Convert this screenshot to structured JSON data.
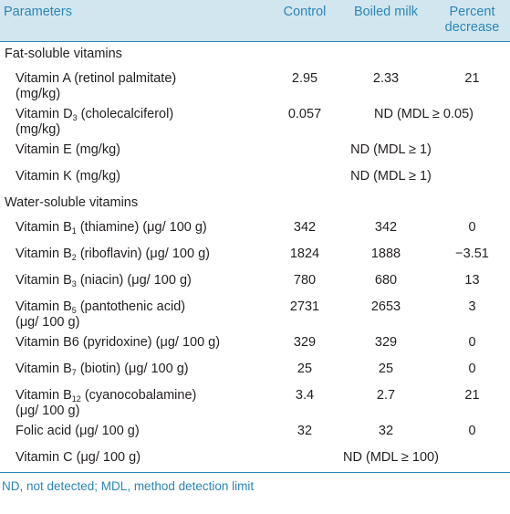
{
  "header": {
    "parameters": "Parameters",
    "control": "Control",
    "boiled_milk": "Boiled milk",
    "percent_decrease_1": "Percent",
    "percent_decrease_2": "decrease"
  },
  "sections": {
    "fat_title": "Fat-soluble vitamins",
    "water_title": "Water-soluble vitamins"
  },
  "rows": {
    "vitA": {
      "l1": "Vitamin A (retinol palmitate)",
      "l2": "(mg/kg)",
      "control": "2.95",
      "boiled": "2.33",
      "pct": "21"
    },
    "vitD": {
      "pre": "Vitamin D",
      "sub": "3",
      "post": " (cholecalciferol)",
      "l2": "(mg/kg)",
      "control": "0.057",
      "merged": "ND (MDL ≥ 0.05)"
    },
    "vitE": {
      "label": "Vitamin E (mg/kg)",
      "merged": "ND (MDL ≥ 1)"
    },
    "vitK": {
      "label": "Vitamin K (mg/kg)",
      "merged": "ND (MDL ≥ 1)"
    },
    "vitB1": {
      "pre": "Vitamin B",
      "sub": "1",
      "post": " (thiamine) (μg/ 100 g)",
      "control": "342",
      "boiled": "342",
      "pct": "0"
    },
    "vitB2": {
      "pre": "Vitamin B",
      "sub": "2",
      "post": " (riboflavin) (μg/ 100 g)",
      "control": "1824",
      "boiled": "1888",
      "pct": "−3.51"
    },
    "vitB3": {
      "pre": "Vitamin B",
      "sub": "3",
      "post": " (niacin) (μg/ 100 g)",
      "control": "780",
      "boiled": "680",
      "pct": "13"
    },
    "vitB5": {
      "pre": "Vitamin B",
      "sub": "5",
      "post": " (pantothenic acid)",
      "l2": "(μg/ 100 g)",
      "control": "2731",
      "boiled": "2653",
      "pct": "3"
    },
    "vitB6": {
      "label": "Vitamin B6 (pyridoxine) (μg/ 100 g)",
      "control": "329",
      "boiled": "329",
      "pct": "0"
    },
    "vitB7": {
      "pre": "Vitamin B",
      "sub": "7",
      "post": " (biotin) (μg/ 100 g)",
      "control": "25",
      "boiled": "25",
      "pct": "0"
    },
    "vitB12": {
      "pre": "Vitamin B",
      "sub": "12",
      "post": " (cyanocobalamine)",
      "l2": "(μg/ 100 g)",
      "control": "3.4",
      "boiled": "2.7",
      "pct": "21"
    },
    "folic": {
      "label": "Folic acid (μg/ 100 g)",
      "control": "32",
      "boiled": "32",
      "pct": "0"
    },
    "vitC": {
      "label": "Vitamin C (μg/ 100 g)",
      "merged": "ND (MDL ≥ 100)"
    }
  },
  "footnote": "ND, not detected; MDL, method detection limit"
}
